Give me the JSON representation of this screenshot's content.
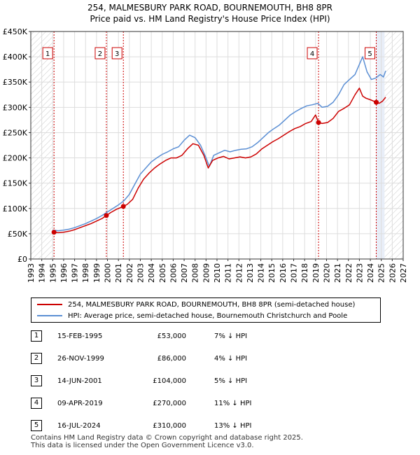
{
  "title": {
    "line1": "254, MALMESBURY PARK ROAD, BOURNEMOUTH, BH8 8PR",
    "line2": "Price paid vs. HM Land Registry's House Price Index (HPI)"
  },
  "chart_data": {
    "type": "line",
    "title": "254, MALMESBURY PARK ROAD, BOURNEMOUTH, BH8 8PR",
    "subtitle": "Price paid vs. HM Land Registry's House Price Index (HPI)",
    "xlim": [
      1993,
      2027
    ],
    "ylim": [
      0,
      450000
    ],
    "xticks": [
      1993,
      1994,
      1995,
      1996,
      1997,
      1998,
      1999,
      2000,
      2001,
      2002,
      2003,
      2004,
      2005,
      2006,
      2007,
      2008,
      2009,
      2010,
      2011,
      2012,
      2013,
      2014,
      2015,
      2016,
      2017,
      2018,
      2019,
      2020,
      2021,
      2022,
      2023,
      2024,
      2025,
      2026,
      2027
    ],
    "yticks": [
      0,
      50000,
      100000,
      150000,
      200000,
      250000,
      300000,
      350000,
      400000,
      450000
    ],
    "ytick_labels": [
      "£0",
      "£50K",
      "£100K",
      "£150K",
      "£200K",
      "£250K",
      "£300K",
      "£350K",
      "£400K",
      "£450K"
    ],
    "grid": true,
    "hatched_ranges": [
      [
        1993,
        1995.12
      ],
      [
        2025.3,
        2027
      ]
    ],
    "colors": {
      "property": "#cc0000",
      "hpi": "#5b8fd4",
      "marker_line": "#cc0000",
      "grid": "#dddddd",
      "shade": "#e8eef8"
    },
    "series": [
      {
        "name": "254, MALMESBURY PARK ROAD, BOURNEMOUTH, BH8 8PR (semi-detached house)",
        "color": "#cc0000",
        "x": [
          1995.12,
          1995.5,
          1996,
          1996.5,
          1997,
          1997.5,
          1998,
          1998.5,
          1999,
          1999.5,
          1999.9,
          2000.3,
          2000.8,
          2001.45,
          2001.8,
          2002.3,
          2002.8,
          2003.3,
          2003.8,
          2004.3,
          2004.8,
          2005.3,
          2005.8,
          2006.3,
          2006.8,
          2007.3,
          2007.8,
          2008.3,
          2008.8,
          2009.2,
          2009.6,
          2010.1,
          2010.6,
          2011.1,
          2011.6,
          2012.1,
          2012.6,
          2013.1,
          2013.6,
          2014.1,
          2014.6,
          2015.1,
          2015.6,
          2016.1,
          2016.6,
          2017.1,
          2017.6,
          2018.1,
          2018.6,
          2019.0,
          2019.27,
          2019.6,
          2020.1,
          2020.6,
          2021.1,
          2021.6,
          2022.1,
          2022.6,
          2023.0,
          2023.3,
          2023.6,
          2024.0,
          2024.54,
          2024.8,
          2025.1,
          2025.4
        ],
        "y": [
          53000,
          52000,
          53000,
          55000,
          58000,
          62000,
          66000,
          70000,
          75000,
          80000,
          86000,
          92000,
          98000,
          104000,
          108000,
          118000,
          140000,
          158000,
          170000,
          180000,
          188000,
          195000,
          200000,
          200000,
          205000,
          218000,
          228000,
          225000,
          205000,
          180000,
          195000,
          200000,
          203000,
          198000,
          200000,
          202000,
          200000,
          202000,
          208000,
          218000,
          225000,
          232000,
          238000,
          245000,
          252000,
          258000,
          262000,
          268000,
          272000,
          285000,
          270000,
          268000,
          270000,
          278000,
          292000,
          298000,
          305000,
          325000,
          338000,
          322000,
          318000,
          315000,
          310000,
          308000,
          312000,
          320000
        ]
      },
      {
        "name": "HPI: Average price, semi-detached house, Bournemouth Christchurch and Poole",
        "color": "#5b8fd4",
        "x": [
          1995.0,
          1995.5,
          1996,
          1996.5,
          1997,
          1997.5,
          1998,
          1998.5,
          1999,
          1999.5,
          2000,
          2000.5,
          2001,
          2001.5,
          2002,
          2002.5,
          2003,
          2003.5,
          2004,
          2004.5,
          2005,
          2005.5,
          2006,
          2006.5,
          2007,
          2007.5,
          2008,
          2008.5,
          2009,
          2009.3,
          2009.7,
          2010.2,
          2010.7,
          2011.2,
          2011.7,
          2012.2,
          2012.7,
          2013.2,
          2013.7,
          2014.2,
          2014.7,
          2015.2,
          2015.7,
          2016.2,
          2016.7,
          2017.2,
          2017.7,
          2018.2,
          2018.7,
          2019.2,
          2019.6,
          2020.1,
          2020.6,
          2021.1,
          2021.6,
          2022.1,
          2022.6,
          2023.0,
          2023.3,
          2023.7,
          2024.1,
          2024.5,
          2024.9,
          2025.2,
          2025.4
        ],
        "y": [
          57000,
          56000,
          57000,
          59000,
          62000,
          66000,
          70000,
          75000,
          80000,
          86000,
          93000,
          100000,
          107000,
          115000,
          128000,
          148000,
          168000,
          180000,
          192000,
          200000,
          207000,
          212000,
          218000,
          222000,
          235000,
          245000,
          240000,
          225000,
          200000,
          183000,
          205000,
          210000,
          215000,
          212000,
          215000,
          217000,
          218000,
          222000,
          230000,
          240000,
          250000,
          258000,
          265000,
          275000,
          285000,
          292000,
          298000,
          303000,
          305000,
          308000,
          300000,
          302000,
          310000,
          325000,
          345000,
          355000,
          365000,
          385000,
          400000,
          370000,
          355000,
          358000,
          365000,
          360000,
          372000
        ]
      }
    ],
    "sales": [
      {
        "num": "1",
        "x": 1995.12,
        "y": 53000
      },
      {
        "num": "2",
        "x": 1999.9,
        "y": 86000
      },
      {
        "num": "3",
        "x": 2001.45,
        "y": 104000
      },
      {
        "num": "4",
        "x": 2019.27,
        "y": 270000
      },
      {
        "num": "5",
        "x": 2024.54,
        "y": 310000
      }
    ]
  },
  "legend": {
    "property_label": "254, MALMESBURY PARK ROAD, BOURNEMOUTH, BH8 8PR (semi-detached house)",
    "hpi_label": "HPI: Average price, semi-detached house, Bournemouth Christchurch and Poole"
  },
  "sales_table": [
    {
      "num": "1",
      "date": "15-FEB-1995",
      "price": "£53,000",
      "hpi": "7% ↓ HPI"
    },
    {
      "num": "2",
      "date": "26-NOV-1999",
      "price": "£86,000",
      "hpi": "4% ↓ HPI"
    },
    {
      "num": "3",
      "date": "14-JUN-2001",
      "price": "£104,000",
      "hpi": "5% ↓ HPI"
    },
    {
      "num": "4",
      "date": "09-APR-2019",
      "price": "£270,000",
      "hpi": "11% ↓ HPI"
    },
    {
      "num": "5",
      "date": "16-JUL-2024",
      "price": "£310,000",
      "hpi": "13% ↓ HPI"
    }
  ],
  "footer": {
    "line1": "Contains HM Land Registry data © Crown copyright and database right 2025.",
    "line2": "This data is licensed under the Open Government Licence v3.0."
  }
}
